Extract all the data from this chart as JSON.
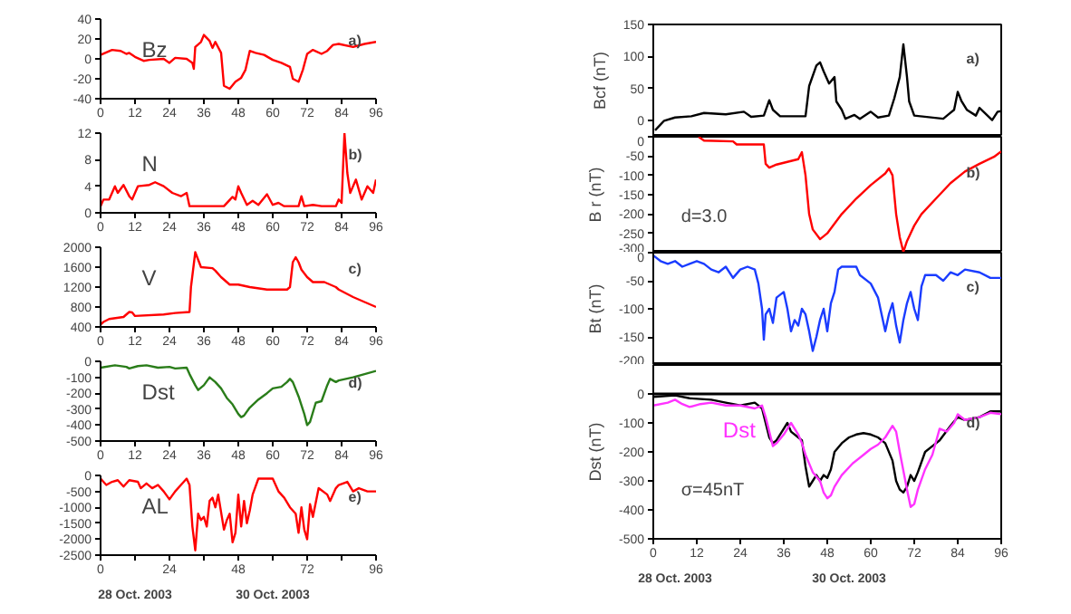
{
  "chart_data": [
    {
      "type": "line",
      "title": "Bz",
      "xlim": [
        0,
        96
      ],
      "xticks": [
        0,
        12,
        24,
        36,
        48,
        60,
        72,
        84,
        96
      ],
      "ylim": [
        -40,
        40
      ],
      "yticks": [
        -40,
        -20,
        0,
        20,
        40
      ],
      "grid": false,
      "legend": false,
      "marker": "none",
      "line_style": "solid",
      "annotations": [
        "a)"
      ],
      "series": [
        {
          "color": "#ff0000",
          "x": [
            0,
            4,
            7,
            9,
            10,
            12,
            15,
            17,
            22,
            24,
            26,
            30,
            32,
            32.5,
            33,
            35,
            36,
            38,
            39,
            40,
            42,
            43,
            45,
            47,
            49,
            50.5,
            52,
            54,
            57,
            60,
            63,
            66,
            67,
            69,
            70.5,
            72,
            74,
            77,
            79,
            81,
            83,
            88,
            92,
            96
          ],
          "values": [
            4,
            9,
            8,
            5,
            6,
            2,
            -2,
            -1,
            0,
            -4,
            1,
            0,
            -4,
            -10,
            12,
            17,
            24,
            18,
            11,
            17,
            6,
            -27,
            -30,
            -23,
            -19,
            -11,
            8,
            6,
            4,
            -1,
            -4,
            -8,
            -20,
            -23,
            -11,
            5,
            9,
            5,
            8,
            14,
            15,
            12,
            15,
            17
          ]
        }
      ]
    },
    {
      "type": "line",
      "title": "N",
      "xlim": [
        0,
        96
      ],
      "xticks": [
        0,
        12,
        24,
        36,
        48,
        60,
        72,
        84,
        96
      ],
      "ylim": [
        0,
        12
      ],
      "yticks": [
        0,
        4,
        8,
        12
      ],
      "grid": false,
      "legend": false,
      "marker": "none",
      "line_style": "solid",
      "annotations": [
        "b)"
      ],
      "series": [
        {
          "color": "#ff0000",
          "x": [
            0,
            1,
            3,
            5,
            6,
            8,
            10,
            11,
            13,
            17,
            19,
            22,
            25,
            28,
            30,
            31,
            36,
            43,
            46,
            47,
            48,
            49,
            51,
            53,
            55,
            58,
            60,
            62,
            64,
            69,
            70,
            71,
            74,
            77,
            82,
            83,
            84,
            85,
            86,
            87,
            89,
            91,
            93,
            95,
            96
          ],
          "values": [
            1,
            2,
            2,
            4,
            3,
            4.2,
            2.5,
            2,
            4,
            4.2,
            4.6,
            4,
            3,
            2.5,
            3,
            1,
            1,
            1,
            2.4,
            2,
            4,
            3,
            1.2,
            1.8,
            1.2,
            2.8,
            1.2,
            1.5,
            1,
            1,
            2.5,
            1,
            1.2,
            1,
            1,
            2,
            1.5,
            12,
            6,
            3,
            5,
            2,
            4,
            3,
            5
          ]
        }
      ]
    },
    {
      "type": "line",
      "title": "V",
      "xlim": [
        0,
        96
      ],
      "xticks": [
        0,
        12,
        24,
        36,
        48,
        60,
        72,
        84,
        96
      ],
      "ylim": [
        400,
        2000
      ],
      "yticks": [
        400,
        800,
        1200,
        1600,
        2000
      ],
      "grid": false,
      "legend": false,
      "marker": "none",
      "line_style": "solid",
      "annotations": [
        "c)"
      ],
      "series": [
        {
          "color": "#ff0000",
          "x": [
            0,
            1,
            3,
            8,
            10,
            11,
            12,
            22,
            26,
            31,
            31.5,
            33,
            34,
            35,
            39,
            40,
            42,
            45,
            48,
            52,
            58,
            65,
            66,
            67,
            68,
            69,
            70,
            72,
            74,
            78,
            82,
            83,
            88,
            92,
            96
          ],
          "values": [
            450,
            500,
            560,
            600,
            700,
            690,
            620,
            650,
            680,
            700,
            1200,
            1900,
            1750,
            1600,
            1580,
            1530,
            1400,
            1250,
            1250,
            1200,
            1150,
            1150,
            1200,
            1700,
            1800,
            1700,
            1550,
            1400,
            1300,
            1300,
            1200,
            1150,
            1000,
            900,
            800
          ]
        }
      ]
    },
    {
      "type": "line",
      "title": "Dst",
      "xlim": [
        0,
        96
      ],
      "xticks": [
        0,
        12,
        24,
        36,
        48,
        60,
        72,
        84,
        96
      ],
      "ylim": [
        -500,
        0
      ],
      "yticks": [
        -500,
        -400,
        -300,
        -200,
        -100,
        0
      ],
      "grid": false,
      "legend": false,
      "marker": "none",
      "line_style": "solid",
      "annotations": [
        "d)"
      ],
      "series": [
        {
          "color": "#2a7d1a",
          "x": [
            0,
            5,
            9,
            10,
            13,
            16,
            20,
            24,
            26,
            30,
            31,
            33,
            34,
            36,
            38,
            40,
            42,
            44,
            46,
            48,
            49,
            50,
            52,
            55,
            58,
            60,
            63,
            65,
            66,
            67,
            69,
            71,
            72,
            73,
            75,
            77,
            79,
            80,
            82,
            83,
            88,
            92,
            96
          ],
          "values": [
            -40,
            -25,
            -35,
            -45,
            -30,
            -25,
            -40,
            -35,
            -45,
            -40,
            -80,
            -150,
            -180,
            -150,
            -100,
            -130,
            -170,
            -230,
            -270,
            -330,
            -350,
            -340,
            -290,
            -240,
            -200,
            -170,
            -160,
            -130,
            -110,
            -130,
            -220,
            -330,
            -400,
            -380,
            -260,
            -250,
            -150,
            -110,
            -130,
            -120,
            -100,
            -80,
            -60
          ]
        }
      ]
    },
    {
      "type": "line",
      "title": "AL",
      "xlim": [
        0,
        96
      ],
      "xticks": [
        0,
        {
          "value": 12,
          "label": null
        },
        24,
        {
          "value": 36,
          "label": null
        },
        48,
        {
          "value": 60,
          "label": null
        },
        72,
        {
          "value": 84,
          "label": null
        },
        96
      ],
      "ylim": [
        -2500,
        0
      ],
      "yticks": [
        -2500,
        -2000,
        -1500,
        -1000,
        -500,
        0
      ],
      "grid": false,
      "legend": false,
      "marker": "none",
      "line_style": "solid",
      "annotations": [
        "e)",
        "28 Oct. 2003",
        "30 Oct. 2003"
      ],
      "series": [
        {
          "color": "#ff0000",
          "x": [
            0,
            2,
            4,
            6,
            8,
            10,
            13,
            14,
            16,
            18,
            20,
            22,
            24,
            26,
            28,
            30,
            31,
            32,
            33,
            34,
            35,
            36,
            37,
            38,
            39,
            40,
            41,
            43,
            44,
            45,
            46,
            47,
            48,
            49,
            50,
            51,
            52,
            53,
            55,
            60,
            62,
            64,
            66,
            68,
            69,
            70,
            71,
            72,
            73,
            74,
            76,
            79,
            80,
            82,
            83,
            86,
            88,
            90,
            93,
            96
          ],
          "values": [
            -100,
            -300,
            -200,
            -150,
            -350,
            -150,
            -200,
            -400,
            -250,
            -400,
            -300,
            -500,
            -750,
            -500,
            -300,
            -100,
            -300,
            -1600,
            -2350,
            -1200,
            -1400,
            -1300,
            -1600,
            -800,
            -700,
            -1000,
            -600,
            -1700,
            -1400,
            -1200,
            -2100,
            -1800,
            -600,
            -1600,
            -800,
            -1500,
            -1100,
            -600,
            -100,
            -100,
            -500,
            -700,
            -1000,
            -1200,
            -1800,
            -1000,
            -1700,
            -2000,
            -900,
            -1300,
            -400,
            -600,
            -800,
            -400,
            -300,
            -200,
            -500,
            -400,
            -500,
            -500
          ]
        }
      ]
    },
    {
      "type": "line",
      "ylabel": "Bcf (nT)",
      "xlim": [
        0,
        96
      ],
      "xticks": [
        0,
        12,
        24,
        36,
        48,
        60,
        72,
        84,
        96
      ],
      "ylim": [
        -25,
        150
      ],
      "yticks": [
        0,
        50,
        100,
        150
      ],
      "tick_labels": "y",
      "grid": false,
      "legend": false,
      "marker": "none",
      "line_style": "solid",
      "annotations": [
        "a)"
      ],
      "series": [
        {
          "color": "#000000",
          "x": [
            0.5,
            3,
            6,
            10.5,
            14,
            20,
            25,
            27,
            30.5,
            32,
            33,
            35,
            42,
            43,
            45,
            46,
            47,
            48.5,
            50,
            50.5,
            52,
            53,
            55.5,
            57,
            60,
            62,
            65,
            66.5,
            68,
            69,
            70,
            70.6,
            72,
            80,
            81.5,
            83,
            84,
            85,
            86.5,
            89,
            90,
            91.5,
            93.5,
            95,
            96
          ],
          "values": [
            -15,
            0,
            5,
            7,
            12,
            10,
            14,
            6,
            8,
            32,
            17,
            7,
            7,
            54,
            86,
            91,
            77,
            58,
            68,
            30,
            17,
            3,
            9,
            3,
            14,
            5,
            8,
            35,
            68,
            119,
            68,
            30,
            8,
            3,
            10,
            17,
            45,
            31,
            17,
            8,
            20,
            12,
            1,
            14,
            15
          ]
        }
      ]
    },
    {
      "type": "line",
      "ylabel": "B r (nT)",
      "xlim": [
        0,
        96
      ],
      "xticks": [
        0,
        12,
        24,
        36,
        48,
        60,
        72,
        84,
        96
      ],
      "ylim": [
        -300,
        0
      ],
      "yticks": [
        -300,
        -250,
        -200,
        -150,
        -100,
        -50,
        0
      ],
      "tick_labels": "y",
      "grid": false,
      "legend": false,
      "marker": "none",
      "line_style": "solid",
      "annotations": [
        "b)",
        "d=3.0"
      ],
      "series": [
        {
          "color": "#ff0000",
          "x": [
            12.5,
            14,
            22,
            23,
            30.5,
            31,
            32,
            34,
            40,
            41,
            42,
            43,
            44,
            46,
            48,
            52,
            56,
            60,
            64,
            65,
            66,
            67,
            68,
            69,
            70,
            72,
            74,
            78,
            82,
            86,
            90,
            94,
            96
          ],
          "values": [
            0,
            -10,
            -12,
            -20,
            -20,
            -70,
            -80,
            -72,
            -58,
            -40,
            -100,
            -200,
            -240,
            -265,
            -250,
            -200,
            -160,
            -125,
            -95,
            -82,
            -100,
            -200,
            -260,
            -298,
            -270,
            -230,
            -200,
            -160,
            -120,
            -90,
            -70,
            -52,
            -38
          ]
        }
      ]
    },
    {
      "type": "line",
      "ylabel": "Bt (nT)",
      "xlim": [
        0,
        96
      ],
      "xticks": [
        0,
        12,
        24,
        36,
        48,
        60,
        72,
        84,
        96
      ],
      "ylim": [
        -200,
        0
      ],
      "yticks": [
        -200,
        -150,
        -100,
        -50,
        0
      ],
      "tick_labels": "y",
      "grid": false,
      "legend": false,
      "marker": "none",
      "line_style": "solid",
      "annotations": [
        "c)"
      ],
      "series": [
        {
          "color": "#1a3cff",
          "x": [
            0,
            2,
            4,
            6,
            8,
            10,
            12,
            14,
            16,
            18,
            20,
            22,
            24,
            26,
            28,
            29,
            30,
            30.5,
            31,
            32,
            33,
            34,
            36,
            37,
            38,
            39,
            40,
            41,
            42,
            43,
            44,
            45,
            46,
            47,
            48,
            49,
            50,
            51,
            52,
            56,
            57,
            60,
            62,
            63,
            64,
            65,
            66,
            67,
            68,
            69,
            70,
            71,
            72,
            73,
            74,
            75,
            78,
            80,
            82,
            84,
            86,
            90,
            93,
            96
          ],
          "values": [
            -5,
            -15,
            -20,
            -15,
            -25,
            -20,
            -15,
            -20,
            -30,
            -35,
            -25,
            -45,
            -30,
            -25,
            -30,
            -55,
            -100,
            -155,
            -110,
            -100,
            -125,
            -80,
            -70,
            -100,
            -140,
            -120,
            -130,
            -100,
            -110,
            -140,
            -175,
            -150,
            -120,
            -100,
            -140,
            -90,
            -70,
            -30,
            -25,
            -25,
            -40,
            -55,
            -80,
            -110,
            -140,
            -110,
            -90,
            -130,
            -160,
            -120,
            -90,
            -70,
            -100,
            -120,
            -60,
            -40,
            -40,
            -50,
            -35,
            -40,
            -30,
            -35,
            -45,
            -45
          ]
        }
      ]
    },
    {
      "type": "line",
      "ylabel": "Dst (nT)",
      "xlim": [
        0,
        96
      ],
      "xticks": [
        0,
        12,
        24,
        36,
        48,
        60,
        72,
        84,
        96
      ],
      "ylim": [
        -500,
        100
      ],
      "yticks": [
        -500,
        -400,
        -300,
        -200,
        -100,
        0
      ],
      "grid": false,
      "legend": false,
      "marker": "none",
      "line_style": "solid",
      "ref_lines": [
        {
          "axis": "y",
          "value": 0,
          "color": "#000000"
        }
      ],
      "annotations": [
        "d)",
        "σ=45nT",
        "28 Oct. 2003",
        "30 Oct. 2003"
      ],
      "series": [
        {
          "color": "#000000",
          "x": [
            0,
            6,
            10,
            16,
            20,
            24,
            28,
            30,
            31,
            32,
            33,
            34,
            36,
            37,
            38,
            40,
            41,
            42,
            43,
            44,
            45,
            46,
            47,
            48,
            49,
            50,
            52,
            54,
            56,
            58,
            60,
            62,
            64,
            66,
            67,
            68,
            69,
            70,
            71,
            72,
            73,
            75,
            77,
            79,
            82,
            84,
            86,
            90,
            93,
            96
          ],
          "values": [
            -10,
            -5,
            -15,
            -20,
            -30,
            -40,
            -30,
            -50,
            -100,
            -150,
            -170,
            -160,
            -120,
            -100,
            -130,
            -150,
            -160,
            -250,
            -320,
            -300,
            -280,
            -300,
            -280,
            -290,
            -260,
            -200,
            -170,
            -150,
            -140,
            -135,
            -140,
            -150,
            -170,
            -230,
            -300,
            -330,
            -340,
            -320,
            -280,
            -300,
            -270,
            -200,
            -180,
            -160,
            -110,
            -80,
            -90,
            -80,
            -60,
            -60
          ]
        },
        {
          "name": "Dst",
          "color": "#ff33ff",
          "x": [
            0,
            4,
            6,
            8,
            10,
            13,
            16,
            20,
            24,
            28,
            30,
            31,
            32,
            33,
            34,
            36,
            38,
            40,
            41,
            42,
            44,
            46,
            47,
            48,
            49,
            50,
            52,
            55,
            58,
            60,
            62,
            64,
            66,
            67,
            68,
            70,
            71,
            72,
            73,
            75,
            77,
            79,
            81,
            83,
            84,
            86,
            90,
            93,
            96
          ],
          "values": [
            -40,
            -30,
            -20,
            -35,
            -45,
            -35,
            -30,
            -40,
            -40,
            -50,
            -40,
            -80,
            -130,
            -180,
            -170,
            -140,
            -100,
            -140,
            -170,
            -210,
            -270,
            -300,
            -340,
            -360,
            -350,
            -320,
            -280,
            -240,
            -210,
            -190,
            -175,
            -150,
            -110,
            -130,
            -200,
            -330,
            -390,
            -380,
            -330,
            -260,
            -210,
            -120,
            -130,
            -100,
            -70,
            -90,
            -80,
            -65,
            -70
          ]
        }
      ]
    }
  ]
}
